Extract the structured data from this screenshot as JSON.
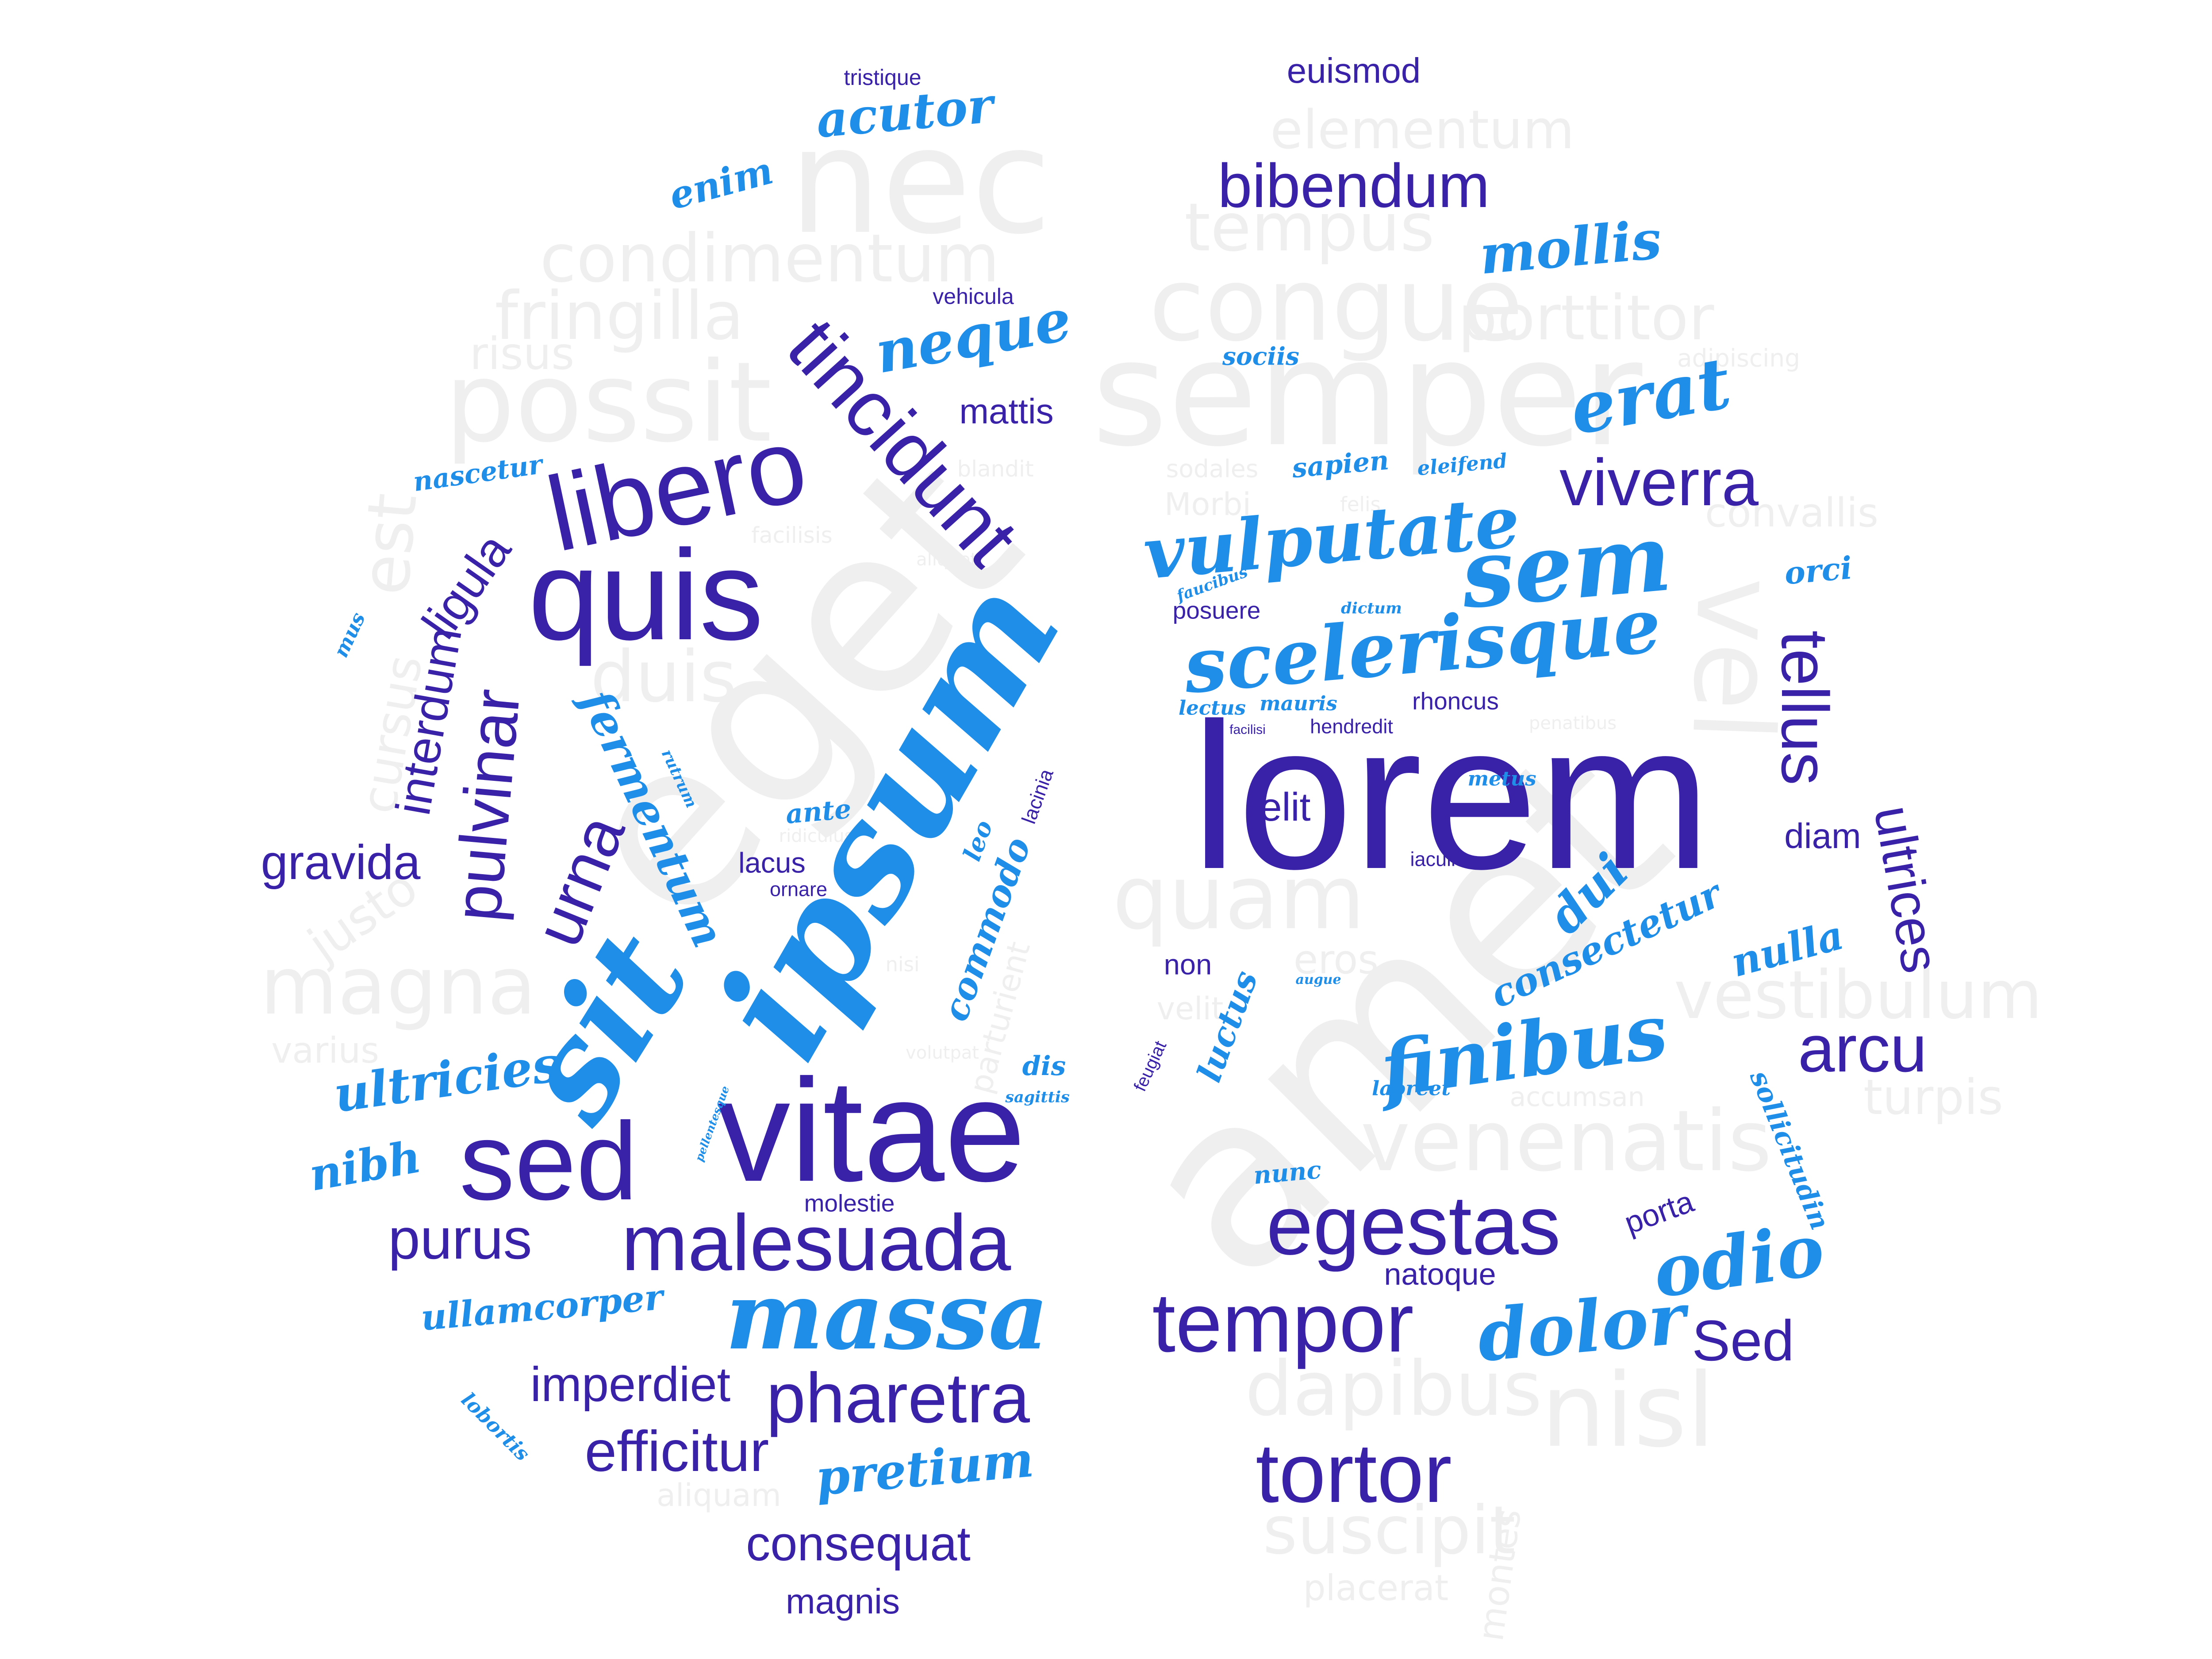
{
  "palette": {
    "gray": "#efefef",
    "purple": "#3a22a8",
    "blue": "#1f8ee8"
  },
  "words": [
    {
      "text": "nec",
      "style": "gray"
    },
    {
      "text": "eget",
      "style": "gray"
    },
    {
      "text": "amet",
      "style": "gray"
    },
    {
      "text": "semper",
      "style": "gray"
    },
    {
      "text": "congue",
      "style": "gray"
    },
    {
      "text": "possit",
      "style": "gray"
    },
    {
      "text": "magna",
      "style": "gray"
    },
    {
      "text": "condimentum",
      "style": "gray"
    },
    {
      "text": "fringilla",
      "style": "gray"
    },
    {
      "text": "tempus",
      "style": "gray"
    },
    {
      "text": "elementum",
      "style": "gray"
    },
    {
      "text": "porttitor",
      "style": "gray"
    },
    {
      "text": "vel",
      "style": "gray"
    },
    {
      "text": "venenatis",
      "style": "gray"
    },
    {
      "text": "vestibulum",
      "style": "gray"
    },
    {
      "text": "quam",
      "style": "gray"
    },
    {
      "text": "duis",
      "style": "gray"
    },
    {
      "text": "dapibus",
      "style": "gray"
    },
    {
      "text": "nisl",
      "style": "gray"
    },
    {
      "text": "suscipit",
      "style": "gray"
    },
    {
      "text": "est",
      "style": "gray"
    },
    {
      "text": "risus",
      "style": "gray"
    },
    {
      "text": "justo",
      "style": "gray"
    },
    {
      "text": "cursus",
      "style": "gray"
    },
    {
      "text": "varius",
      "style": "gray"
    },
    {
      "text": "turpis",
      "style": "gray"
    },
    {
      "text": "placerat",
      "style": "gray"
    },
    {
      "text": "montes",
      "style": "gray"
    },
    {
      "text": "eros",
      "style": "gray"
    },
    {
      "text": "velit",
      "style": "gray"
    },
    {
      "text": "convallis",
      "style": "gray"
    },
    {
      "text": "Morbi",
      "style": "gray"
    },
    {
      "text": "aliquam",
      "style": "gray"
    },
    {
      "text": "parturient",
      "style": "gray"
    },
    {
      "text": "accumsan",
      "style": "gray"
    },
    {
      "text": "sodales",
      "style": "gray"
    },
    {
      "text": "adipiscing",
      "style": "gray"
    },
    {
      "text": "blandit",
      "style": "gray"
    },
    {
      "text": "facilisis",
      "style": "gray"
    },
    {
      "text": "aliquet",
      "style": "gray"
    },
    {
      "text": "felis",
      "style": "gray"
    },
    {
      "text": "ridiculus",
      "style": "gray"
    },
    {
      "text": "nisi",
      "style": "gray"
    },
    {
      "text": "volutpat",
      "style": "gray"
    },
    {
      "text": "penatibus",
      "style": "gray"
    },
    {
      "text": "lorem",
      "style": "purple"
    },
    {
      "text": "vitae",
      "style": "purple"
    },
    {
      "text": "quis",
      "style": "purple"
    },
    {
      "text": "sed",
      "style": "purple"
    },
    {
      "text": "libero",
      "style": "purple"
    },
    {
      "text": "tincidunt",
      "style": "purple"
    },
    {
      "text": "malesuada",
      "style": "purple"
    },
    {
      "text": "egestas",
      "style": "purple"
    },
    {
      "text": "tempor",
      "style": "purple"
    },
    {
      "text": "tortor",
      "style": "purple"
    },
    {
      "text": "pharetra",
      "style": "purple"
    },
    {
      "text": "viverra",
      "style": "purple"
    },
    {
      "text": "tellus",
      "style": "purple"
    },
    {
      "text": "bibendum",
      "style": "purple"
    },
    {
      "text": "pulvinar",
      "style": "purple"
    },
    {
      "text": "urna",
      "style": "purple"
    },
    {
      "text": "arcu",
      "style": "purple"
    },
    {
      "text": "purus",
      "style": "purple"
    },
    {
      "text": "imperdiet",
      "style": "purple"
    },
    {
      "text": "efficitur",
      "style": "purple"
    },
    {
      "text": "consequat",
      "style": "purple"
    },
    {
      "text": "gravida",
      "style": "purple"
    },
    {
      "text": "ligula",
      "style": "purple"
    },
    {
      "text": "interdum",
      "style": "purple"
    },
    {
      "text": "Sed",
      "style": "purple"
    },
    {
      "text": "ultrices",
      "style": "purple"
    },
    {
      "text": "mattis",
      "style": "purple"
    },
    {
      "text": "elit",
      "style": "purple"
    },
    {
      "text": "euismod",
      "style": "purple"
    },
    {
      "text": "magnis",
      "style": "purple"
    },
    {
      "text": "natoque",
      "style": "purple"
    },
    {
      "text": "diam",
      "style": "purple"
    },
    {
      "text": "porta",
      "style": "purple"
    },
    {
      "text": "lacus",
      "style": "purple"
    },
    {
      "text": "non",
      "style": "purple"
    },
    {
      "text": "tristique",
      "style": "purple"
    },
    {
      "text": "posuere",
      "style": "purple"
    },
    {
      "text": "rhoncus",
      "style": "purple"
    },
    {
      "text": "molestie",
      "style": "purple"
    },
    {
      "text": "vehicula",
      "style": "purple"
    },
    {
      "text": "iaculis",
      "style": "purple"
    },
    {
      "text": "hendredit",
      "style": "purple"
    },
    {
      "text": "ornare",
      "style": "purple"
    },
    {
      "text": "feugiat",
      "style": "purple"
    },
    {
      "text": "lacinia",
      "style": "purple"
    },
    {
      "text": "facilisi",
      "style": "purple"
    },
    {
      "text": "ipsum",
      "style": "blue"
    },
    {
      "text": "sit",
      "style": "blue"
    },
    {
      "text": "massa",
      "style": "blue"
    },
    {
      "text": "sem",
      "style": "blue"
    },
    {
      "text": "scelerisque",
      "style": "blue"
    },
    {
      "text": "vulputate",
      "style": "blue"
    },
    {
      "text": "finibus",
      "style": "blue"
    },
    {
      "text": "dolor",
      "style": "blue"
    },
    {
      "text": "odio",
      "style": "blue"
    },
    {
      "text": "erat",
      "style": "blue"
    },
    {
      "text": "mollis",
      "style": "blue"
    },
    {
      "text": "neque",
      "style": "blue"
    },
    {
      "text": "acutor",
      "style": "blue"
    },
    {
      "text": "ultricies",
      "style": "blue"
    },
    {
      "text": "fermentum",
      "style": "blue"
    },
    {
      "text": "consectetur",
      "style": "blue"
    },
    {
      "text": "pretium",
      "style": "blue"
    },
    {
      "text": "ullamcorper",
      "style": "blue"
    },
    {
      "text": "nibh",
      "style": "blue"
    },
    {
      "text": "commodo",
      "style": "blue"
    },
    {
      "text": "dui",
      "style": "blue"
    },
    {
      "text": "enim",
      "style": "blue"
    },
    {
      "text": "nulla",
      "style": "blue"
    },
    {
      "text": "sollicitudin",
      "style": "blue"
    },
    {
      "text": "luctus",
      "style": "blue"
    },
    {
      "text": "orci",
      "style": "blue"
    },
    {
      "text": "nascetur",
      "style": "blue"
    },
    {
      "text": "sapien",
      "style": "blue"
    },
    {
      "text": "eleifend",
      "style": "blue"
    },
    {
      "text": "sociis",
      "style": "blue"
    },
    {
      "text": "ante",
      "style": "blue"
    },
    {
      "text": "leo",
      "style": "blue"
    },
    {
      "text": "dis",
      "style": "blue"
    },
    {
      "text": "mus",
      "style": "blue"
    },
    {
      "text": "nunc",
      "style": "blue"
    },
    {
      "text": "laoreet",
      "style": "blue"
    },
    {
      "text": "metus",
      "style": "blue"
    },
    {
      "text": "sagittis",
      "style": "blue"
    },
    {
      "text": "lectus",
      "style": "blue"
    },
    {
      "text": "mauris",
      "style": "blue"
    },
    {
      "text": "faucibus",
      "style": "blue"
    },
    {
      "text": "dictum",
      "style": "blue"
    },
    {
      "text": "augue",
      "style": "blue"
    },
    {
      "text": "rutrum",
      "style": "blue"
    },
    {
      "text": "lobortis",
      "style": "blue"
    },
    {
      "text": "pellentesque",
      "style": "blue"
    }
  ]
}
